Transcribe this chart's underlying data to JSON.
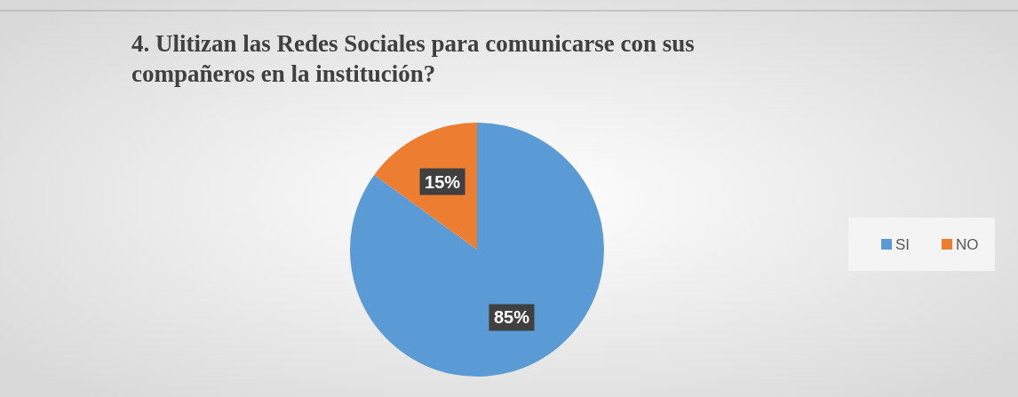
{
  "chart_data": {
    "type": "pie",
    "title": "4. Ulitizan las Redes Sociales para comunicarse con sus compañeros en la institución?",
    "categories": [
      "SI",
      "NO"
    ],
    "values": [
      85,
      15
    ],
    "colors": [
      "#5b9bd5",
      "#ed7d31"
    ],
    "value_labels": [
      "85%",
      "15%"
    ],
    "legend": "right"
  }
}
